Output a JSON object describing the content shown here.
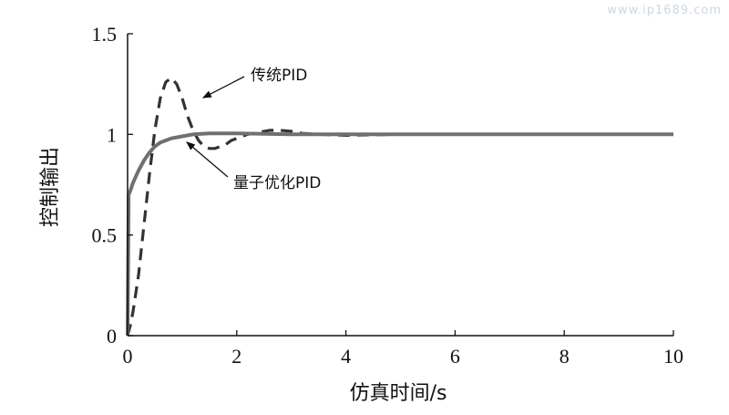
{
  "watermark": "www.ip1689.com",
  "chart_data": {
    "type": "line",
    "xlabel": "仿真时间/s",
    "ylabel": "控制输出",
    "xlim": [
      0,
      10
    ],
    "ylim": [
      0,
      1.5
    ],
    "x_ticks": [
      0,
      2,
      4,
      6,
      8,
      10
    ],
    "y_ticks": [
      {
        "value": 0,
        "label": "0"
      },
      {
        "value": 0.5,
        "label": "0.5"
      },
      {
        "value": 1,
        "label": "1"
      },
      {
        "value": 1.5,
        "label": "1.5"
      }
    ],
    "grid": false,
    "series": [
      {
        "name": "传统PID",
        "style": "dashed",
        "color": "#333333",
        "x": [
          0,
          0.05,
          0.1,
          0.2,
          0.3,
          0.4,
          0.5,
          0.6,
          0.7,
          0.8,
          0.9,
          1.0,
          1.1,
          1.2,
          1.3,
          1.4,
          1.5,
          1.6,
          1.7,
          1.8,
          1.9,
          2.0,
          2.2,
          2.4,
          2.6,
          2.8,
          3.0,
          3.2,
          3.5,
          4.0,
          5.0,
          6.0,
          8.0,
          10.0
        ],
        "y": [
          0,
          0.05,
          0.12,
          0.3,
          0.55,
          0.8,
          1.02,
          1.18,
          1.26,
          1.28,
          1.25,
          1.18,
          1.09,
          1.02,
          0.97,
          0.94,
          0.93,
          0.93,
          0.94,
          0.95,
          0.97,
          0.98,
          1.0,
          1.01,
          1.02,
          1.02,
          1.015,
          1.005,
          1.0,
          0.995,
          1.0,
          1.0,
          1.0,
          1.0
        ]
      },
      {
        "name": "量子优化PID",
        "style": "solid",
        "color": "#707070",
        "x": [
          0,
          0.02,
          0.05,
          0.1,
          0.2,
          0.3,
          0.4,
          0.5,
          0.6,
          0.8,
          1.0,
          1.2,
          1.5,
          2.0,
          3.0,
          4.0,
          6.0,
          8.0,
          10.0
        ],
        "y": [
          0,
          0.7,
          0.72,
          0.76,
          0.82,
          0.87,
          0.91,
          0.94,
          0.96,
          0.98,
          0.99,
          1.0,
          1.005,
          1.005,
          1.0,
          1.0,
          1.0,
          1.0,
          1.0
        ]
      }
    ],
    "annotations": [
      {
        "text": "传统PID",
        "target": {
          "x": 1.25,
          "y": 1.2
        }
      },
      {
        "text": "量子优化PID",
        "target": {
          "x": 0.95,
          "y": 0.98
        }
      }
    ]
  }
}
